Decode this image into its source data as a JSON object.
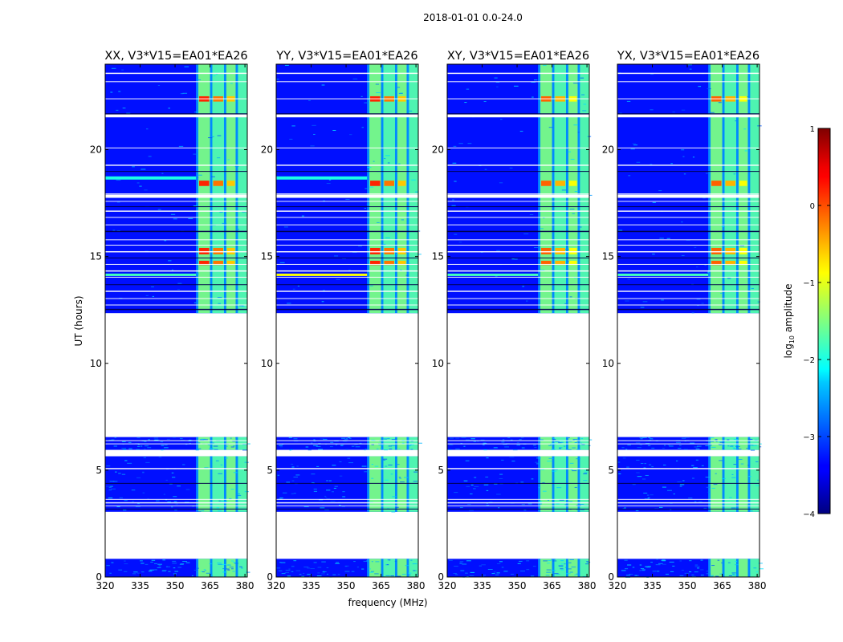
{
  "chart_data": {
    "type": "heatmap",
    "suptitle": "2018-01-01 0.0-24.0",
    "panels": [
      {
        "title": "XX, V3*V15=EA01*EA26"
      },
      {
        "title": "YY, V3*V15=EA01*EA26"
      },
      {
        "title": "XY, V3*V15=EA01*EA26"
      },
      {
        "title": "YX, V3*V15=EA01*EA26"
      }
    ],
    "xlabel": "frequency (MHz)",
    "ylabel": "UT (hours)",
    "xlim": [
      320,
      381
    ],
    "ylim": [
      0,
      24
    ],
    "xticks": [
      320,
      335,
      350,
      365,
      380
    ],
    "yticks": [
      0,
      5,
      10,
      15,
      20
    ],
    "colorbar": {
      "label": "log",
      "label_sub": "10",
      "label_rest": " amplitude",
      "range": [
        -4,
        1
      ],
      "ticks": [
        1,
        0,
        -1,
        -2,
        -3,
        -4
      ],
      "tick_labels": [
        "1",
        "0",
        "−1",
        "−2",
        "−3",
        "−4"
      ],
      "colormap": "jet"
    },
    "data_gaps_hours": [
      [
        0.85,
        3.05
      ],
      [
        5.65,
        5.95
      ],
      [
        6.55,
        12.35
      ]
    ],
    "rfi_band_mhz": [
      359,
      381
    ],
    "bright_channels_mhz": [
      [
        360,
        365
      ],
      [
        366,
        371
      ],
      [
        372,
        376
      ],
      [
        377,
        381
      ]
    ],
    "background_log10_amplitude": -3.3,
    "rfi_band_log10_amplitude": -1.5,
    "peak_log10_amplitude": 0.2
  }
}
